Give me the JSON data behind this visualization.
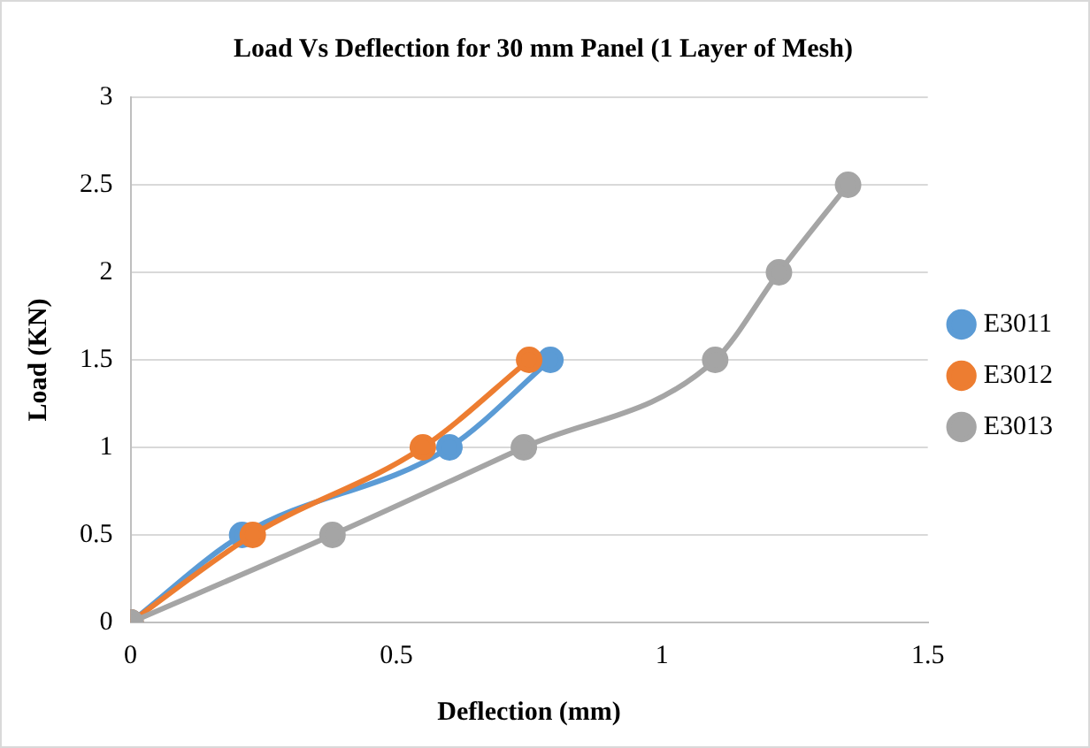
{
  "chart_data": {
    "type": "line",
    "title": "Load Vs Deflection for 30 mm Panel (1 Layer of Mesh)",
    "xlabel": "Deflection (mm)",
    "ylabel": "Load (KN)",
    "series": [
      {
        "name": "E3011",
        "color": "#5b9bd5",
        "x": [
          0,
          0.21,
          0.6,
          0.79
        ],
        "values": [
          0,
          0.5,
          1,
          1.5
        ]
      },
      {
        "name": "E3012",
        "color": "#ed7d31",
        "x": [
          0,
          0.23,
          0.55,
          0.75
        ],
        "values": [
          0,
          0.5,
          1,
          1.5
        ]
      },
      {
        "name": "E3013",
        "color": "#a5a5a5",
        "x": [
          0,
          0.38,
          0.74,
          1.1,
          1.22,
          1.35
        ],
        "values": [
          0,
          0.5,
          1,
          1.5,
          2,
          2.5
        ]
      }
    ],
    "xlim": [
      0,
      1.5
    ],
    "xticks": [
      0,
      0.5,
      1,
      1.5
    ],
    "ylim": [
      0,
      3
    ],
    "yticks": [
      0,
      0.5,
      1,
      1.5,
      2,
      2.5,
      3
    ],
    "grid": "y",
    "legend": "right",
    "marker": "circle",
    "line_style": "solid"
  }
}
